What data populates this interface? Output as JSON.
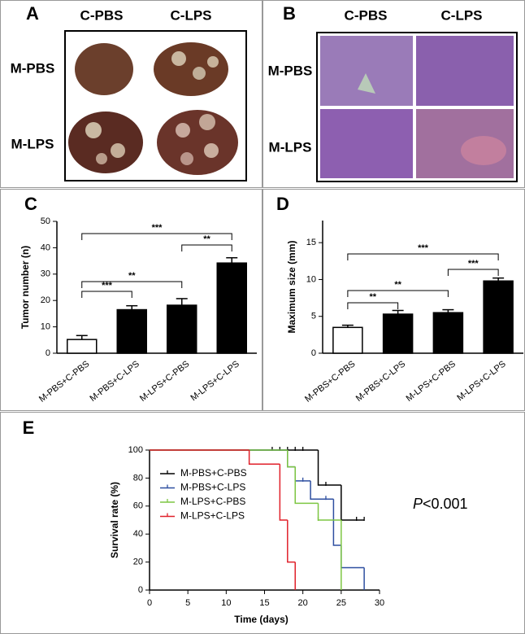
{
  "figure": {
    "panel_a": {
      "label": "A",
      "columns": [
        "C-PBS",
        "C-LPS"
      ],
      "rows": [
        "M-PBS",
        "M-LPS"
      ]
    },
    "panel_b": {
      "label": "B",
      "columns": [
        "C-PBS",
        "C-LPS"
      ],
      "rows": [
        "M-PBS",
        "M-LPS"
      ]
    }
  },
  "chart_data": [
    {
      "type": "bar",
      "label": "C",
      "ylabel": "Tumor number (n)",
      "categories": [
        "M-PBS+C-PBS",
        "M-PBS+C-LPS",
        "M-LPS+C-PBS",
        "M-LPS+C-LPS"
      ],
      "values": [
        5.2,
        16.5,
        18.2,
        34.2
      ],
      "errors": [
        1.5,
        1.5,
        2.5,
        2
      ],
      "colors": [
        "#ffffff",
        "#000000",
        "#000000",
        "#000000"
      ],
      "ylim": [
        0,
        50
      ],
      "yticks": [
        0,
        10,
        20,
        30,
        40,
        50
      ],
      "brackets": [
        {
          "from": 0,
          "to": 3,
          "label": "***"
        },
        {
          "from": 2,
          "to": 3,
          "label": "**"
        },
        {
          "from": 0,
          "to": 2,
          "label": "**"
        },
        {
          "from": 0,
          "to": 1,
          "label": "***"
        }
      ]
    },
    {
      "type": "bar",
      "label": "D",
      "ylabel": "Maximum size (mm)",
      "categories": [
        "M-PBS+C-PBS",
        "M-PBS+C-LPS",
        "M-LPS+C-PBS",
        "M-LPS+C-LPS"
      ],
      "values": [
        3.5,
        5.3,
        5.5,
        9.8
      ],
      "errors": [
        0.3,
        0.5,
        0.4,
        0.4
      ],
      "colors": [
        "#ffffff",
        "#000000",
        "#000000",
        "#000000"
      ],
      "ylim": [
        0,
        18
      ],
      "yticks": [
        0,
        5,
        10,
        15
      ],
      "brackets": [
        {
          "from": 0,
          "to": 3,
          "label": "***"
        },
        {
          "from": 2,
          "to": 3,
          "label": "***"
        },
        {
          "from": 0,
          "to": 2,
          "label": "**"
        },
        {
          "from": 0,
          "to": 1,
          "label": "**"
        }
      ]
    },
    {
      "type": "line",
      "step": true,
      "label": "E",
      "xlabel": "Time (days)",
      "ylabel": "Survival rate (%)",
      "xlim": [
        0,
        30
      ],
      "xticks": [
        0,
        5,
        10,
        15,
        20,
        25,
        30
      ],
      "ylim": [
        0,
        100
      ],
      "yticks": [
        0,
        20,
        40,
        60,
        80,
        100
      ],
      "series": [
        {
          "name": "M-PBS+C-PBS",
          "color": "#000000",
          "x": [
            0,
            22,
            25,
            28
          ],
          "values": [
            100,
            75,
            50,
            50
          ],
          "censored": [
            16,
            17,
            18,
            19,
            20,
            23,
            27,
            28
          ]
        },
        {
          "name": "M-PBS+C-LPS",
          "color": "#2e4fa0",
          "x": [
            0,
            18,
            19,
            21,
            24,
            25,
            28
          ],
          "values": [
            100,
            88,
            78,
            65,
            32,
            16,
            0
          ],
          "censored": [
            20,
            23
          ]
        },
        {
          "name": "M-LPS+C-PBS",
          "color": "#7dc642",
          "x": [
            0,
            18,
            19,
            22,
            25
          ],
          "values": [
            100,
            88,
            62,
            50,
            0
          ],
          "censored": [
            22
          ]
        },
        {
          "name": "M-LPS+C-LPS",
          "color": "#e0202a",
          "x": [
            0,
            13,
            17,
            18,
            19
          ],
          "values": [
            100,
            90,
            50,
            20,
            0
          ],
          "censored": []
        }
      ],
      "annotation": {
        "symbol": "P",
        "text": "<0.001"
      }
    }
  ]
}
